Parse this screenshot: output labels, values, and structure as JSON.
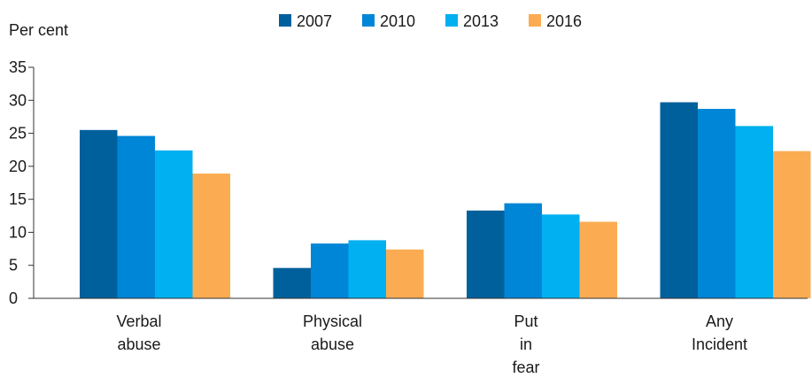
{
  "chart_data": {
    "type": "bar",
    "ylabel": "Per cent",
    "ylim": [
      0,
      35
    ],
    "yticks": [
      "0",
      "5",
      "10",
      "15",
      "20",
      "25",
      "30",
      "35"
    ],
    "categories": [
      [
        "Verbal",
        "abuse"
      ],
      [
        "Physical",
        "abuse"
      ],
      [
        "Put",
        "in",
        "fear"
      ],
      [
        "Any",
        "Incident"
      ]
    ],
    "legend_position": "top",
    "grid": false,
    "series": [
      {
        "name": "2007",
        "color": "#00609c",
        "values": [
          25.5,
          4.6,
          13.3,
          29.7
        ]
      },
      {
        "name": "2010",
        "color": "#0086d6",
        "values": [
          24.6,
          8.3,
          14.4,
          28.7
        ]
      },
      {
        "name": "2013",
        "color": "#00b0f0",
        "values": [
          22.4,
          8.8,
          12.7,
          26.1
        ]
      },
      {
        "name": "2016",
        "color": "#fbac53",
        "values": [
          18.9,
          7.4,
          11.6,
          22.3
        ]
      }
    ]
  }
}
